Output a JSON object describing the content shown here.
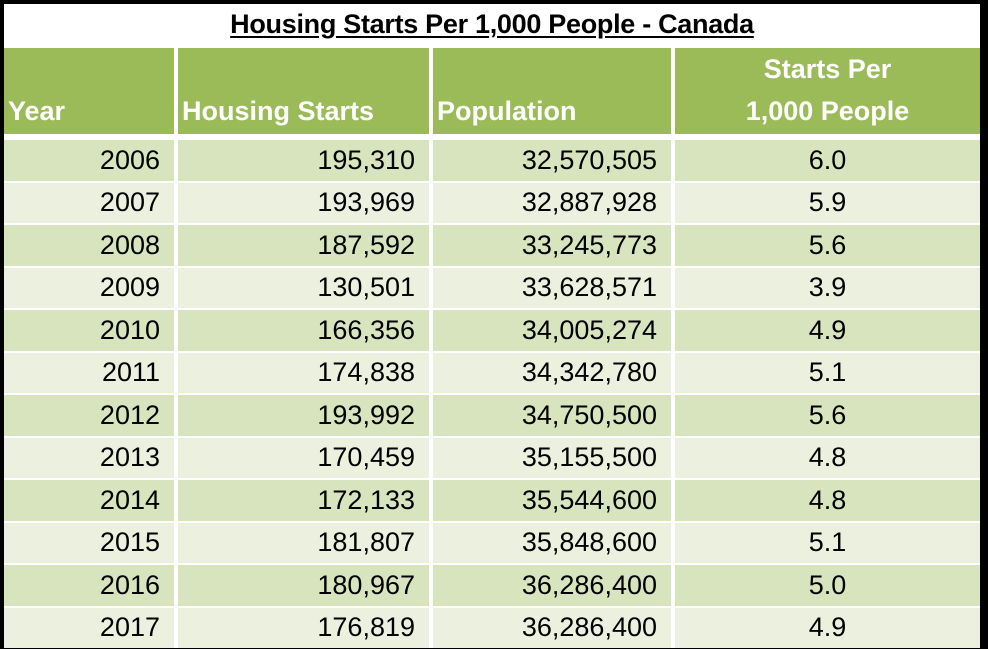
{
  "chart_data": {
    "type": "table",
    "title": "Housing Starts Per 1,000 People - Canada",
    "columns": [
      "Year",
      "Housing Starts",
      "Population",
      "Starts Per 1,000 People"
    ],
    "header_lines": {
      "year": "Year",
      "housing_starts": "Housing Starts",
      "population": "Population",
      "starts_per_line1": "Starts Per",
      "starts_per_line2": "1,000 People"
    },
    "rows": [
      [
        "2006",
        "195,310",
        "32,570,505",
        "6.0"
      ],
      [
        "2007",
        "193,969",
        "32,887,928",
        "5.9"
      ],
      [
        "2008",
        "187,592",
        "33,245,773",
        "5.6"
      ],
      [
        "2009",
        "130,501",
        "33,628,571",
        "3.9"
      ],
      [
        "2010",
        "166,356",
        "34,005,274",
        "4.9"
      ],
      [
        "2011",
        "174,838",
        "34,342,780",
        "5.1"
      ],
      [
        "2012",
        "193,992",
        "34,750,500",
        "5.6"
      ],
      [
        "2013",
        "170,459",
        "35,155,500",
        "4.8"
      ],
      [
        "2014",
        "172,133",
        "35,544,600",
        "4.8"
      ],
      [
        "2015",
        "181,807",
        "35,848,600",
        "5.1"
      ],
      [
        "2016",
        "180,967",
        "36,286,400",
        "5.0"
      ],
      [
        "2017",
        "176,819",
        "36,286,400",
        "4.9"
      ]
    ]
  },
  "colors": {
    "header_bg": "#9bbb59",
    "row_dark": "#d7e4bd",
    "row_light": "#ebf1de",
    "border": "#000000"
  }
}
